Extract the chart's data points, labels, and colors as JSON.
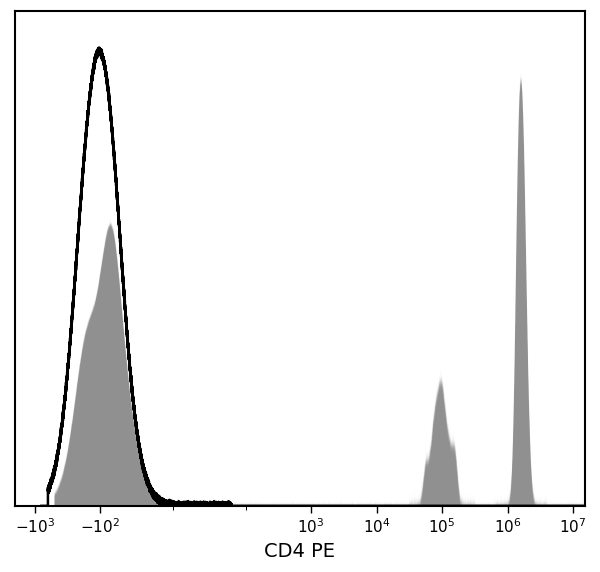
{
  "xlabel": "CD4 PE",
  "xlabel_fontsize": 14,
  "xlabel_fontweight": "normal",
  "bg_color": "#ffffff",
  "plot_bg_color": "#ffffff",
  "border_color": "#000000",
  "gray_fill_color": "#909090",
  "black_line_color": "#000000",
  "xtick_values": [
    -1000,
    -100,
    1000,
    10000,
    100000,
    1000000,
    10000000
  ],
  "tick_labelsize": 11,
  "linthresh": 100,
  "figsize": [
    6.0,
    5.72
  ],
  "dpi": 100
}
